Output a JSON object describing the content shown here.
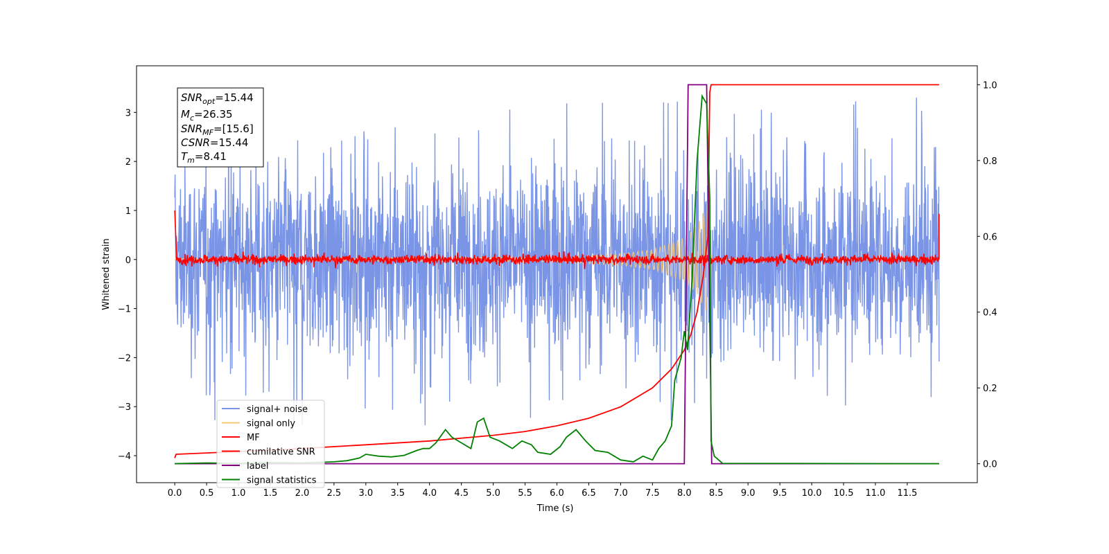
{
  "chart_data": {
    "type": "line",
    "xlabel": "Time (s)",
    "ylabel": "Whitened strain",
    "xlim": [
      -0.6,
      12.6
    ],
    "ylim": [
      -4.55,
      3.95
    ],
    "y2lim": [
      -0.05,
      1.05
    ],
    "x_ticks": [
      "0.0",
      "0.5",
      "1.0",
      "1.5",
      "2.0",
      "2.5",
      "3.0",
      "3.5",
      "4.0",
      "4.5",
      "5.0",
      "5.5",
      "6.0",
      "6.5",
      "7.0",
      "7.5",
      "8.0",
      "8.5",
      "9.0",
      "9.5",
      "10.0",
      "10.5",
      "11.0",
      "11.5"
    ],
    "y_ticks": [
      "3",
      "2",
      "1",
      "0",
      "−1",
      "−2",
      "−3",
      "−4"
    ],
    "y2_ticks": [
      "1.0",
      "0.8",
      "0.6",
      "0.4",
      "0.2",
      "0.0"
    ],
    "grid": false,
    "legend_position": "lower-left",
    "annotation": {
      "snr_opt": {
        "base": "SNR",
        "sub": "opt",
        "value": "=15.44"
      },
      "chirp_mass": {
        "base": "M",
        "sub": "c",
        "value": "=26.35"
      },
      "snr_mf": {
        "base": "SNR",
        "sub": "MF",
        "value": "=[15.6]"
      },
      "csnr": {
        "base": "CSNR",
        "value": "=15.44"
      },
      "t_merger": {
        "base": "T",
        "sub": "m",
        "value": "=8.41"
      }
    },
    "series": [
      {
        "name": "signal+ noise",
        "color": "#7b95e6",
        "axis": "left",
        "description_values": {
          "x_range": [
            0.0,
            12.0
          ],
          "typical_amplitude": 1.0,
          "max_peaks": [
            3.6,
            3.2,
            3.1
          ],
          "min_peaks": [
            -3.6,
            -3.4,
            -3.3
          ]
        }
      },
      {
        "name": "signal only",
        "color": "#f5c97a",
        "axis": "left",
        "points": [
          [
            0.0,
            0.02
          ],
          [
            6.0,
            0.05
          ],
          [
            7.0,
            0.12
          ],
          [
            7.5,
            0.2
          ],
          [
            8.0,
            0.45
          ],
          [
            8.2,
            0.7
          ],
          [
            8.35,
            1.1
          ],
          [
            8.41,
            1.4
          ],
          [
            8.43,
            0.0
          ]
        ]
      },
      {
        "name": "MF",
        "color": "#ff0000",
        "axis": "left",
        "points": [
          [
            0.0,
            1.0
          ],
          [
            0.03,
            0.0
          ],
          [
            12.0,
            0.0
          ],
          [
            12.0,
            0.93
          ]
        ],
        "noise_amplitude": 0.12
      },
      {
        "name": "cumilative SNR",
        "color": "#ff0000",
        "axis": "right",
        "points": [
          [
            0.0,
            0.015
          ],
          [
            0.02,
            0.025
          ],
          [
            1.0,
            0.032
          ],
          [
            2.0,
            0.04
          ],
          [
            3.0,
            0.05
          ],
          [
            4.0,
            0.06
          ],
          [
            5.0,
            0.075
          ],
          [
            5.5,
            0.085
          ],
          [
            6.0,
            0.1
          ],
          [
            6.5,
            0.12
          ],
          [
            7.0,
            0.15
          ],
          [
            7.5,
            0.2
          ],
          [
            7.8,
            0.25
          ],
          [
            8.0,
            0.3
          ],
          [
            8.1,
            0.34
          ],
          [
            8.2,
            0.4
          ],
          [
            8.3,
            0.5
          ],
          [
            8.37,
            0.6
          ],
          [
            8.4,
            0.98
          ],
          [
            8.42,
            1.0
          ],
          [
            12.0,
            1.0
          ]
        ]
      },
      {
        "name": "label",
        "color": "#800080",
        "axis": "right",
        "points": [
          [
            0.0,
            0.0
          ],
          [
            8.0,
            0.0
          ],
          [
            8.06,
            1.0
          ],
          [
            8.35,
            1.0
          ],
          [
            8.43,
            0.0
          ],
          [
            12.0,
            0.0
          ]
        ]
      },
      {
        "name": "signal statistics",
        "color": "#008000",
        "axis": "right",
        "points": [
          [
            0.0,
            0.0
          ],
          [
            0.5,
            0.002
          ],
          [
            1.0,
            0.001
          ],
          [
            1.5,
            0.003
          ],
          [
            2.0,
            0.002
          ],
          [
            2.5,
            0.005
          ],
          [
            2.7,
            0.008
          ],
          [
            2.9,
            0.015
          ],
          [
            3.0,
            0.025
          ],
          [
            3.2,
            0.02
          ],
          [
            3.4,
            0.018
          ],
          [
            3.6,
            0.022
          ],
          [
            3.8,
            0.035
          ],
          [
            3.9,
            0.04
          ],
          [
            4.0,
            0.04
          ],
          [
            4.1,
            0.055
          ],
          [
            4.25,
            0.09
          ],
          [
            4.35,
            0.07
          ],
          [
            4.5,
            0.055
          ],
          [
            4.65,
            0.04
          ],
          [
            4.75,
            0.11
          ],
          [
            4.85,
            0.12
          ],
          [
            4.95,
            0.07
          ],
          [
            5.1,
            0.06
          ],
          [
            5.3,
            0.04
          ],
          [
            5.45,
            0.06
          ],
          [
            5.6,
            0.05
          ],
          [
            5.7,
            0.03
          ],
          [
            5.9,
            0.025
          ],
          [
            6.05,
            0.045
          ],
          [
            6.15,
            0.07
          ],
          [
            6.3,
            0.09
          ],
          [
            6.45,
            0.06
          ],
          [
            6.6,
            0.035
          ],
          [
            6.8,
            0.03
          ],
          [
            7.0,
            0.01
          ],
          [
            7.2,
            0.005
          ],
          [
            7.35,
            0.02
          ],
          [
            7.5,
            0.01
          ],
          [
            7.6,
            0.04
          ],
          [
            7.7,
            0.06
          ],
          [
            7.8,
            0.1
          ],
          [
            7.85,
            0.22
          ],
          [
            7.95,
            0.28
          ],
          [
            8.0,
            0.35
          ],
          [
            8.05,
            0.3
          ],
          [
            8.12,
            0.48
          ],
          [
            8.2,
            0.8
          ],
          [
            8.28,
            0.97
          ],
          [
            8.35,
            0.95
          ],
          [
            8.4,
            0.7
          ],
          [
            8.42,
            0.06
          ],
          [
            8.47,
            0.02
          ],
          [
            8.6,
            0.001
          ],
          [
            12.0,
            0.0
          ]
        ]
      }
    ]
  }
}
